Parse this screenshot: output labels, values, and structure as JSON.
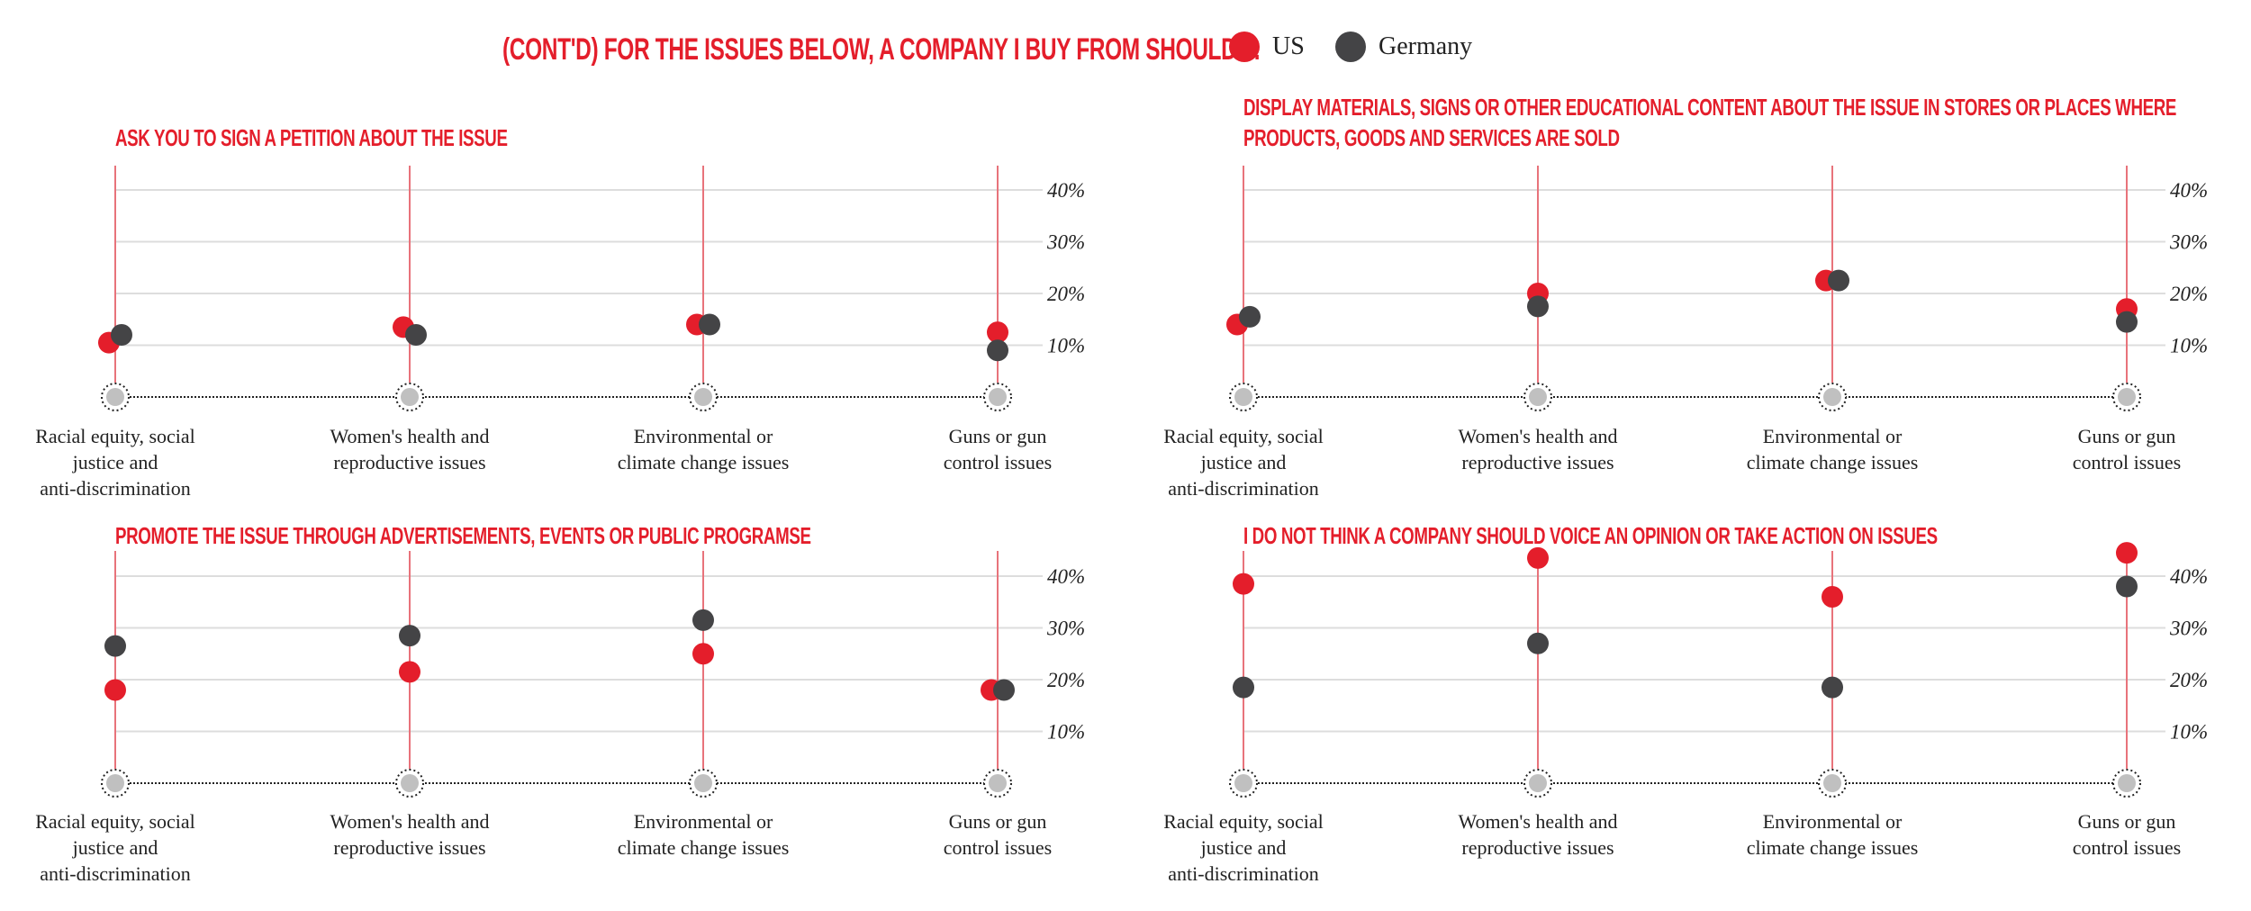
{
  "header": {
    "title": "(CONT'D) FOR THE ISSUES BELOW, A COMPANY I BUY FROM SHOULD ...",
    "legend": [
      {
        "label": "US",
        "color": "#e41e2b"
      },
      {
        "label": "Germany",
        "color": "#444446"
      }
    ]
  },
  "colors": {
    "us": "#e41e2b",
    "germany": "#444446",
    "stem": "#e8737b",
    "grid": "#dddddd",
    "base_dot": "#c0c0c0"
  },
  "chart_data": [
    {
      "type": "scatter",
      "title": "ASK YOU TO SIGN A PETITION ABOUT THE ISSUE",
      "categories": [
        "Racial equity, social justice and anti-discrimination",
        "Women's health and reproductive issues",
        "Environmental or climate change issues",
        "Guns or gun control issues"
      ],
      "category_lines": [
        [
          "Racial equity, social",
          "justice and",
          "anti-discrimination"
        ],
        [
          "Women's health and",
          "reproductive issues"
        ],
        [
          "Environmental or",
          "climate change issues"
        ],
        [
          "Guns or gun",
          "control issues"
        ]
      ],
      "series": [
        {
          "name": "US",
          "values": [
            10.5,
            13.5,
            14,
            12.5
          ]
        },
        {
          "name": "Germany",
          "values": [
            12,
            12,
            14,
            9
          ]
        }
      ],
      "yticks": [
        "10%",
        "20%",
        "30%",
        "40%"
      ],
      "ylim": [
        0,
        45
      ],
      "grid": true,
      "ylabel_position": "right",
      "legend": "top"
    },
    {
      "type": "scatter",
      "title": "DISPLAY MATERIALS, SIGNS OR OTHER EDUCATIONAL CONTENT ABOUT THE ISSUE IN STORES OR PLACES WHERE PRODUCTS, GOODS AND SERVICES ARE SOLD",
      "title_lines": [
        "DISPLAY MATERIALS, SIGNS OR OTHER EDUCATIONAL CONTENT ABOUT THE ISSUE IN STORES OR PLACES WHERE",
        "PRODUCTS, GOODS AND SERVICES ARE SOLD"
      ],
      "categories": [
        "Racial equity, social justice and anti-discrimination",
        "Women's health and reproductive issues",
        "Environmental or climate change issues",
        "Guns or gun control issues"
      ],
      "category_lines": [
        [
          "Racial equity, social",
          "justice and",
          "anti-discrimination"
        ],
        [
          "Women's health and",
          "reproductive issues"
        ],
        [
          "Environmental or",
          "climate change issues"
        ],
        [
          "Guns or gun",
          "control issues"
        ]
      ],
      "series": [
        {
          "name": "US",
          "values": [
            14,
            20,
            22.5,
            17
          ]
        },
        {
          "name": "Germany",
          "values": [
            15.5,
            17.5,
            22.5,
            14.5
          ]
        }
      ],
      "yticks": [
        "10%",
        "20%",
        "30%",
        "40%"
      ],
      "ylim": [
        0,
        45
      ],
      "grid": true,
      "ylabel_position": "right",
      "legend": "top"
    },
    {
      "type": "scatter",
      "title": "PROMOTE THE ISSUE THROUGH ADVERTISEMENTS, EVENTS OR PUBLIC PROGRAMSE",
      "categories": [
        "Racial equity, social justice and anti-discrimination",
        "Women's health and reproductive issues",
        "Environmental or climate change issues",
        "Guns or gun control issues"
      ],
      "category_lines": [
        [
          "Racial equity, social",
          "justice and",
          "anti-discrimination"
        ],
        [
          "Women's health and",
          "reproductive issues"
        ],
        [
          "Environmental or",
          "climate change issues"
        ],
        [
          "Guns or gun",
          "control issues"
        ]
      ],
      "series": [
        {
          "name": "US",
          "values": [
            18,
            21.5,
            25,
            18
          ]
        },
        {
          "name": "Germany",
          "values": [
            26.5,
            28.5,
            31.5,
            18
          ]
        }
      ],
      "yticks": [
        "10%",
        "20%",
        "30%",
        "40%"
      ],
      "ylim": [
        0,
        45
      ],
      "grid": true,
      "ylabel_position": "right",
      "legend": "top"
    },
    {
      "type": "scatter",
      "title": "I DO NOT THINK A COMPANY SHOULD VOICE AN OPINION OR TAKE ACTION ON ISSUES",
      "categories": [
        "Racial equity, social justice and anti-discrimination",
        "Women's health and reproductive issues",
        "Environmental or climate change issues",
        "Guns or gun control issues"
      ],
      "category_lines": [
        [
          "Racial equity, social",
          "justice and",
          "anti-discrimination"
        ],
        [
          "Women's health and",
          "reproductive issues"
        ],
        [
          "Environmental or",
          "climate change issues"
        ],
        [
          "Guns or gun",
          "control issues"
        ]
      ],
      "series": [
        {
          "name": "US",
          "values": [
            38.5,
            43.5,
            36,
            44.5
          ]
        },
        {
          "name": "Germany",
          "values": [
            18.5,
            27,
            18.5,
            38
          ]
        }
      ],
      "yticks": [
        "10%",
        "20%",
        "30%",
        "40%"
      ],
      "ylim": [
        0,
        45
      ],
      "grid": true,
      "ylabel_position": "right",
      "legend": "top"
    }
  ]
}
